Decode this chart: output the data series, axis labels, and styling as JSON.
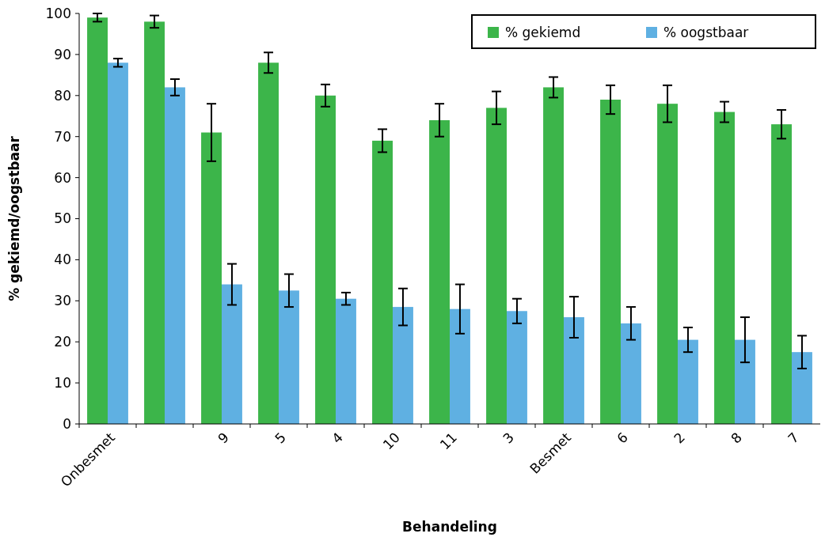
{
  "chart_data": {
    "type": "bar",
    "xlabel": "Behandeling",
    "ylabel": "% gekiemd/oogstbaar",
    "categories": [
      "Onbesmet",
      null,
      "9",
      "5",
      "4",
      "10",
      "11",
      "3",
      "Besmet",
      "6",
      "2",
      "8",
      "7"
    ],
    "series": [
      {
        "name": "% gekiemd",
        "color": "#3cb54a",
        "values": [
          99,
          98,
          71,
          88,
          80,
          69,
          74,
          77,
          82,
          79,
          78,
          76,
          73
        ],
        "errors": [
          1,
          1.5,
          7,
          2.5,
          2.7,
          2.8,
          4,
          4,
          2.5,
          3.5,
          4.5,
          2.5,
          3.5
        ]
      },
      {
        "name": "% oogstbaar",
        "color": "#5fb0e2",
        "values": [
          88,
          82,
          34,
          32.5,
          30.5,
          28.5,
          28,
          27.5,
          26,
          24.5,
          20.5,
          20.5,
          17.5
        ],
        "errors": [
          1,
          2,
          5,
          4,
          1.5,
          4.5,
          6,
          3,
          5,
          4,
          3,
          5.5,
          4
        ]
      }
    ],
    "ylim": [
      0,
      100
    ],
    "yticks": [
      0,
      10,
      20,
      30,
      40,
      50,
      60,
      70,
      80,
      90,
      100
    ],
    "legend": "top right"
  }
}
